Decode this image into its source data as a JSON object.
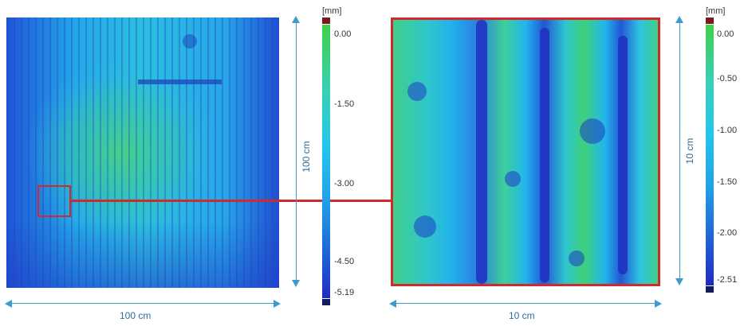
{
  "figure": {
    "colors": {
      "dimension": "#3d9bd0",
      "zoom_box": "#d02a2a",
      "surface_deep": "#1f3bc4",
      "surface_mid": "#22b6ee",
      "surface_high": "#3ed17a"
    },
    "left_panel": {
      "width_label": "100 cm",
      "height_label": "100 cm",
      "colorbar": {
        "unit": "[mm]",
        "ticks": [
          "0.00",
          "-1.50",
          "-3.00",
          "-4.50",
          "-5.19"
        ],
        "max": 0.0,
        "min": -5.19
      }
    },
    "right_panel": {
      "width_label": "10 cm",
      "height_label": "10 cm",
      "colorbar": {
        "unit": "[mm]",
        "ticks": [
          "0.00",
          "-0.50",
          "-1.00",
          "-1.50",
          "-2.00",
          "-2.51"
        ],
        "max": 0.0,
        "min": -2.51
      }
    }
  }
}
